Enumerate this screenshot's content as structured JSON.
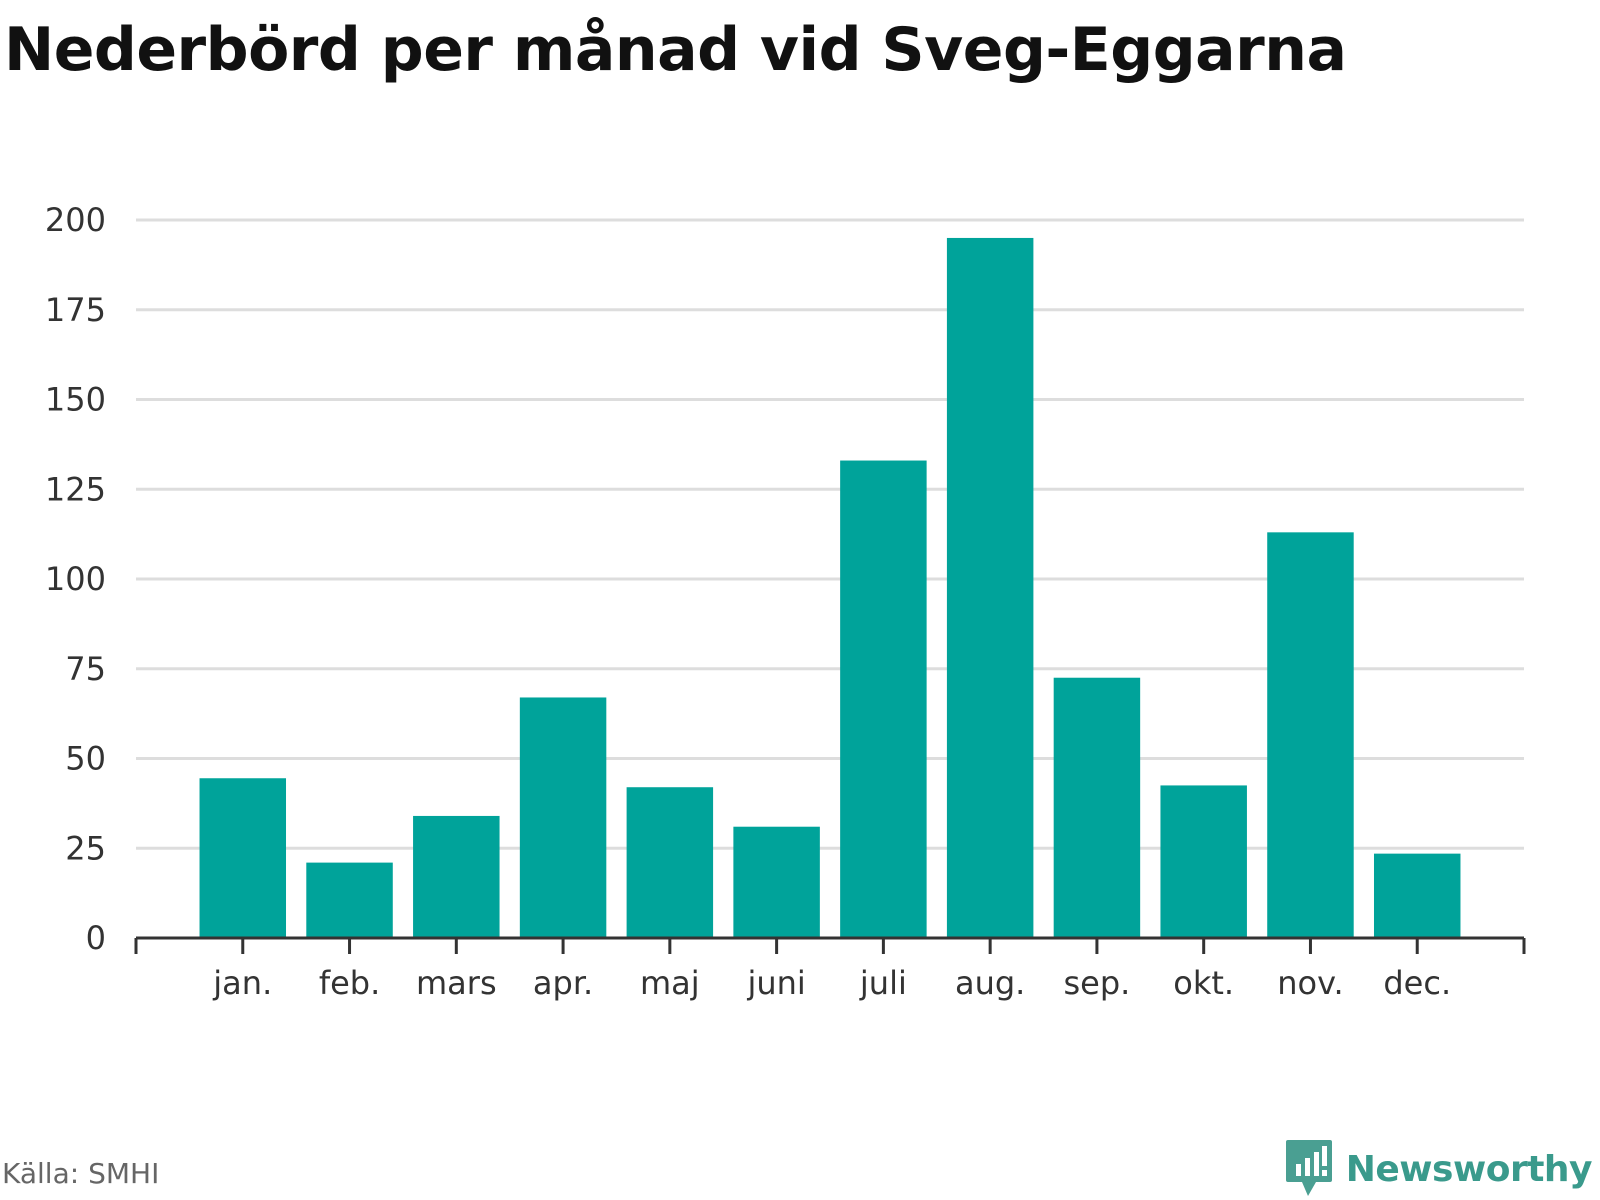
{
  "header": {
    "title": "Nederbörd per månad vid Sveg-Eggarna"
  },
  "footer": {
    "source": "Källa: SMHI",
    "brand": "Newsworthy"
  },
  "colors": {
    "bar": "#00a39a",
    "grid": "#dddddd",
    "axis": "#333333",
    "text": "#333333",
    "brand": "#3a9a8c"
  },
  "chart_data": {
    "type": "bar",
    "title": "Nederbörd per månad vid Sveg-Eggarna",
    "xlabel": "",
    "ylabel": "",
    "categories": [
      "jan.",
      "feb.",
      "mars",
      "apr.",
      "maj",
      "juni",
      "juli",
      "aug.",
      "sep.",
      "okt.",
      "nov.",
      "dec."
    ],
    "values": [
      44.5,
      21,
      34,
      67,
      42,
      31,
      133,
      195,
      72.5,
      42.5,
      113,
      23.5
    ],
    "ylim": [
      0,
      200
    ],
    "yticks": [
      0,
      25,
      50,
      75,
      100,
      125,
      150,
      175,
      200
    ],
    "grid": true,
    "legend": "none"
  }
}
